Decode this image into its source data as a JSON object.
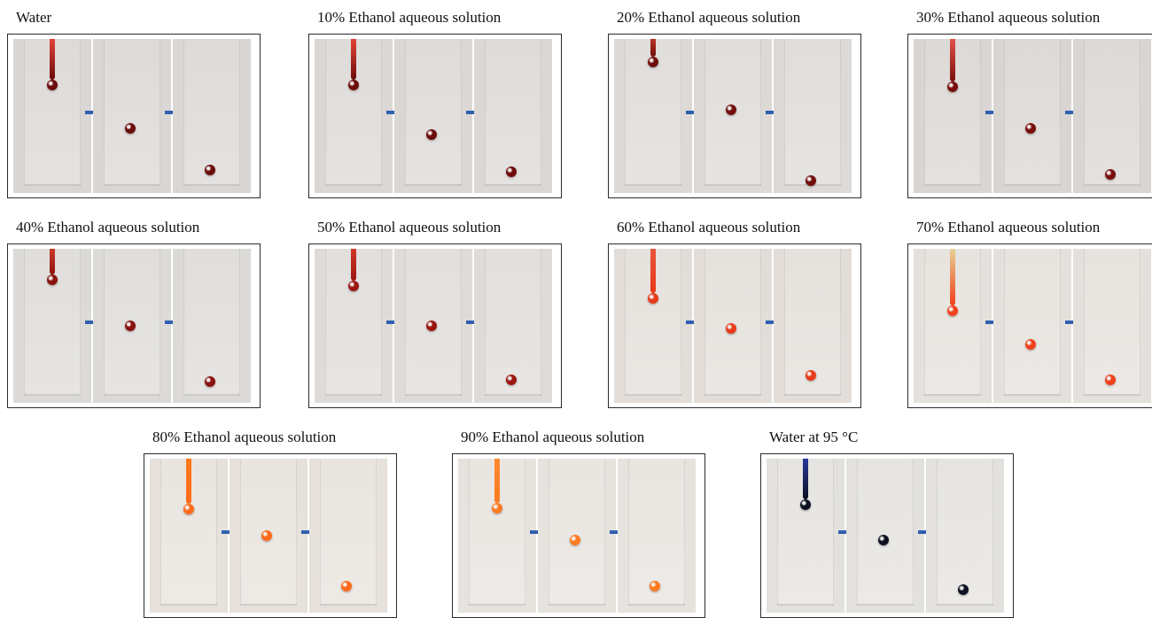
{
  "panels": [
    {
      "label": "Water",
      "droplet_color": "#6b0b0b",
      "pipette_color": "#e8453a",
      "bg": "#d9d6d3"
    },
    {
      "label": "10% Ethanol aqueous solution",
      "droplet_color": "#6d0c0a",
      "pipette_color": "#e8453a",
      "bg": "#dad7d4"
    },
    {
      "label": "20% Ethanol aqueous solution",
      "droplet_color": "#700d0a",
      "pipette_color": "#c0392b",
      "bg": "#dcd9d6"
    },
    {
      "label": "30% Ethanol aqueous solution",
      "droplet_color": "#780f0c",
      "pipette_color": "#e8564a",
      "bg": "#d8d5d2"
    },
    {
      "label": "40% Ethanol aqueous solution",
      "droplet_color": "#8a120e",
      "pipette_color": "#d33a2c",
      "bg": "#dcdad7"
    },
    {
      "label": "50% Ethanol aqueous solution",
      "droplet_color": "#9b160f",
      "pipette_color": "#d33a2c",
      "bg": "#dedbd8"
    },
    {
      "label": "60% Ethanol aqueous solution",
      "droplet_color": "#e83a1a",
      "pipette_color": "#e8553a",
      "bg": "#e2ddd8"
    },
    {
      "label": "70% Ethanol aqueous solution",
      "droplet_color": "#f0401c",
      "pipette_color": "#e8d59a",
      "bg": "#e4e0db"
    },
    {
      "label": "80% Ethanol aqueous solution",
      "droplet_color": "#ff6a1a",
      "pipette_color": "#ff7a1a",
      "bg": "#e6e1db"
    },
    {
      "label": "90% Ethanol aqueous solution",
      "droplet_color": "#ff7a20",
      "pipette_color": "#ff8a30",
      "bg": "#e6e2dd"
    },
    {
      "label": "Water at 95 °C",
      "droplet_color": "#0d1020",
      "pipette_color": "#2a3aa0",
      "bg": "#e3e1dd"
    }
  ],
  "arrow_color": "#2f5fb0"
}
